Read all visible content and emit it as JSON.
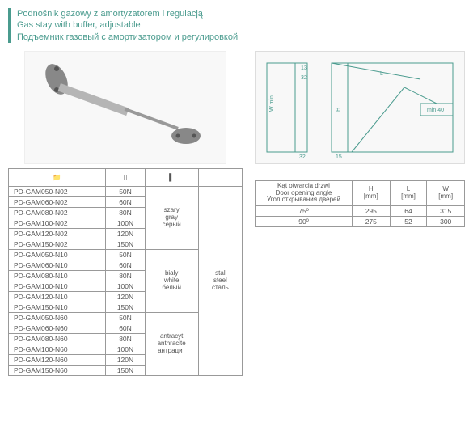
{
  "header": {
    "line1": "Podnośnik gazowy z amortyzatorem i regulacją",
    "line2": "Gas stay with buffer, adjustable",
    "line3": "Подъемник газовый с амортизатором и регулировкой"
  },
  "icons": {
    "folder": "📁",
    "rect": "▯",
    "bar": "▌"
  },
  "product_table": {
    "groups": [
      {
        "color": "szary\ngray\nсерый",
        "material": "stal\nsteel\nсталь",
        "rows": [
          {
            "code": "PD-GAM050-N02",
            "force": "50N"
          },
          {
            "code": "PD-GAM060-N02",
            "force": "60N"
          },
          {
            "code": "PD-GAM080-N02",
            "force": "80N"
          },
          {
            "code": "PD-GAM100-N02",
            "force": "100N"
          },
          {
            "code": "PD-GAM120-N02",
            "force": "120N"
          },
          {
            "code": "PD-GAM150-N02",
            "force": "150N"
          }
        ]
      },
      {
        "color": "biały\nwhite\nбелый",
        "rows": [
          {
            "code": "PD-GAM050-N10",
            "force": "50N"
          },
          {
            "code": "PD-GAM060-N10",
            "force": "60N"
          },
          {
            "code": "PD-GAM080-N10",
            "force": "80N"
          },
          {
            "code": "PD-GAM100-N10",
            "force": "100N"
          },
          {
            "code": "PD-GAM120-N10",
            "force": "120N"
          },
          {
            "code": "PD-GAM150-N10",
            "force": "150N"
          }
        ]
      },
      {
        "color": "antracyt\nanthracite\nантрацит",
        "rows": [
          {
            "code": "PD-GAM050-N60",
            "force": "50N"
          },
          {
            "code": "PD-GAM060-N60",
            "force": "60N"
          },
          {
            "code": "PD-GAM080-N60",
            "force": "80N"
          },
          {
            "code": "PD-GAM100-N60",
            "force": "100N"
          },
          {
            "code": "PD-GAM120-N60",
            "force": "120N"
          },
          {
            "code": "PD-GAM150-N60",
            "force": "150N"
          }
        ]
      }
    ]
  },
  "dim_table": {
    "headers": {
      "angle": "Kąt otwarcia drzwi\nDoor opening angle\nУгол открывания дверей",
      "h": "H\n[mm]",
      "l": "L\n[mm]",
      "w": "W\n[mm]"
    },
    "rows": [
      {
        "angle": "75º",
        "h": "295",
        "l": "64",
        "w": "315"
      },
      {
        "angle": "90º",
        "h": "275",
        "l": "52",
        "w": "300"
      }
    ]
  },
  "diagram_labels": {
    "l": "L",
    "h": "H",
    "wmin": "W min",
    "n13": "13",
    "n32a": "32",
    "n32b": "32",
    "n15": "15",
    "min40": "min 40"
  }
}
